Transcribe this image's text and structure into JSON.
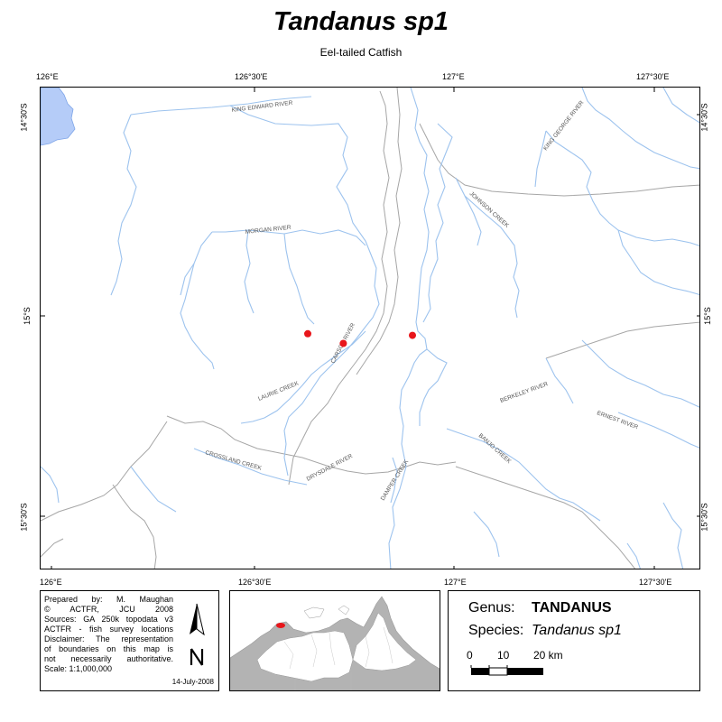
{
  "title": "Tandanus sp1",
  "subtitle": "Eel-tailed Catfish",
  "ticks": {
    "top": [
      "126°E",
      "126°30'E",
      "127°E",
      "127°30'E"
    ],
    "bottom": [
      "126°E",
      "126°30'E",
      "127°E",
      "127°30'E"
    ],
    "left": [
      "14°30'S",
      "15°S",
      "15°30'S"
    ],
    "right": [
      "14°30'S",
      "15°S",
      "15°30'S"
    ]
  },
  "rivers": {
    "king_edward": "KING EDWARD RIVER",
    "king_george": "KING GEORGE RIVER",
    "johnson": "JOHNSON CREEK",
    "morgan": "MORGAN RIVER",
    "carson": "CARSON RIVER",
    "laurie": "LAURIE CREEK",
    "berkeley": "BERKELEY RIVER",
    "ernest": "ERNEST RIVER",
    "banjo": "BANJO CREEK",
    "crossland": "CROSSLAND CREEK",
    "drysdale": "DRYSDALE RIVER",
    "damper": "DAMPER CREEK"
  },
  "survey_points": [
    {
      "lon": 126.649,
      "lat": -14.986
    },
    {
      "lon": 126.739,
      "lat": -15.01
    },
    {
      "lon": 126.914,
      "lat": -14.99
    }
  ],
  "info": {
    "lines": [
      "Prepared by: M. Maughan",
      "© ACTFR, JCU 2008",
      "Sources: GA 250k topodata v3",
      "ACTFR - fish survey locations",
      "Disclaimer: The representation",
      "of boundaries on this map is",
      "not necessarily authoritative.",
      "Scale: 1:1,000,000"
    ],
    "date": "14-July-2008"
  },
  "legend": {
    "genus_label": "Genus:",
    "genus": "TANDANUS",
    "species_label": "Species:",
    "species": "Tandanus sp1",
    "scale_labels": [
      "0",
      "10",
      "20 km"
    ]
  },
  "colors": {
    "river": "#9dc3ee",
    "boundary": "#a6a6a6",
    "water": "#b5ccf8",
    "point": "#e8161b",
    "land_grey": "#b3b3b3"
  }
}
